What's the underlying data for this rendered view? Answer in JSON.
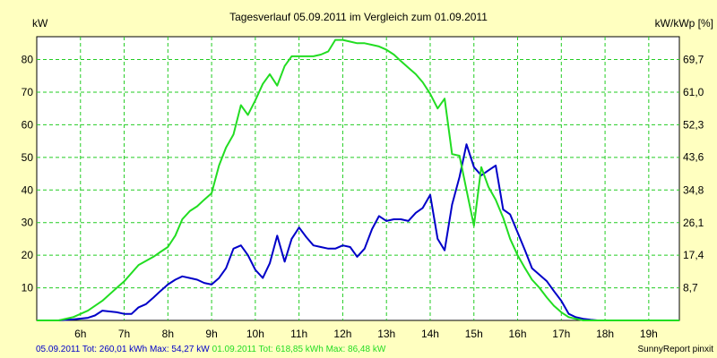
{
  "chart_data": {
    "type": "line",
    "title": "Tagesverlauf 05.09.2011 im Vergleich zum 01.09.2011",
    "ylabel_left": "kW",
    "ylabel_right": "kW/kWp [%]",
    "x_range_hours": [
      5.0,
      19.7
    ],
    "ylim_left": [
      0,
      87
    ],
    "x_ticks": [
      {
        "h": 6,
        "label": "6h"
      },
      {
        "h": 7,
        "label": "7h"
      },
      {
        "h": 8,
        "label": "8h"
      },
      {
        "h": 9,
        "label": "9h"
      },
      {
        "h": 10,
        "label": "10h"
      },
      {
        "h": 11,
        "label": "11h"
      },
      {
        "h": 12,
        "label": "12h"
      },
      {
        "h": 13,
        "label": "13h"
      },
      {
        "h": 14,
        "label": "14h"
      },
      {
        "h": 15,
        "label": "15h"
      },
      {
        "h": 16,
        "label": "16h"
      },
      {
        "h": 17,
        "label": "17h"
      },
      {
        "h": 18,
        "label": "18h"
      },
      {
        "h": 19,
        "label": "19h"
      }
    ],
    "y_ticks_left": [
      {
        "v": 10,
        "label": "10"
      },
      {
        "v": 20,
        "label": "20"
      },
      {
        "v": 30,
        "label": "30"
      },
      {
        "v": 40,
        "label": "40"
      },
      {
        "v": 50,
        "label": "50"
      },
      {
        "v": 60,
        "label": "60"
      },
      {
        "v": 70,
        "label": "70"
      },
      {
        "v": 80,
        "label": "80"
      }
    ],
    "y_ticks_right": [
      {
        "v": 8.7,
        "label": "8,7"
      },
      {
        "v": 17.4,
        "label": "17,4"
      },
      {
        "v": 26.1,
        "label": "26,1"
      },
      {
        "v": 34.8,
        "label": "34,8"
      },
      {
        "v": 43.6,
        "label": "43,6"
      },
      {
        "v": 52.3,
        "label": "52,3"
      },
      {
        "v": 61.0,
        "label": "61,0"
      },
      {
        "v": 69.7,
        "label": "69,7"
      }
    ],
    "grid": true,
    "series": [
      {
        "name": "05.09.2011",
        "color": "#0000c8",
        "x": [
          5.0,
          5.5,
          5.83,
          6.17,
          6.33,
          6.5,
          6.83,
          7.0,
          7.17,
          7.33,
          7.5,
          7.67,
          7.83,
          8.0,
          8.17,
          8.33,
          8.5,
          8.67,
          8.83,
          9.0,
          9.17,
          9.33,
          9.5,
          9.67,
          9.83,
          10.0,
          10.17,
          10.33,
          10.5,
          10.67,
          10.83,
          11.0,
          11.17,
          11.33,
          11.5,
          11.67,
          11.83,
          12.0,
          12.17,
          12.33,
          12.5,
          12.67,
          12.83,
          13.0,
          13.17,
          13.33,
          13.5,
          13.67,
          13.83,
          14.0,
          14.17,
          14.33,
          14.5,
          14.67,
          14.83,
          15.0,
          15.17,
          15.33,
          15.5,
          15.67,
          15.83,
          16.0,
          16.17,
          16.33,
          16.5,
          16.67,
          16.83,
          17.0,
          17.17,
          17.33,
          17.5,
          17.67,
          17.83,
          18.0,
          18.17,
          18.33,
          18.5,
          18.67,
          19.0,
          19.5,
          19.7
        ],
        "values": [
          0.0,
          0.0,
          0.3,
          0.8,
          1.5,
          3.0,
          2.5,
          2.0,
          2.0,
          4.0,
          5.0,
          7.0,
          9.0,
          11.0,
          12.5,
          13.5,
          13.0,
          12.5,
          11.5,
          11.0,
          13.0,
          16.0,
          22.0,
          23.0,
          20.0,
          15.5,
          13.0,
          17.5,
          26.0,
          18.0,
          25.0,
          28.5,
          25.5,
          23.0,
          22.5,
          22.0,
          22.0,
          23.0,
          22.5,
          19.5,
          22.0,
          28.0,
          32.0,
          30.5,
          31.0,
          31.0,
          30.5,
          33.0,
          34.5,
          38.5,
          25.0,
          21.5,
          35.5,
          44.0,
          54.0,
          47.0,
          44.5,
          46.0,
          47.5,
          34.0,
          32.5,
          27.0,
          21.5,
          16.0,
          14.0,
          12.0,
          9.0,
          6.0,
          2.0,
          1.0,
          0.5,
          0.2,
          0.0,
          0.0,
          0.0,
          0.0,
          0.0,
          0.0,
          0.0,
          0.0,
          0.0
        ]
      },
      {
        "name": "01.09.2011",
        "color": "#22dd22",
        "x": [
          5.0,
          5.5,
          5.83,
          6.17,
          6.5,
          6.83,
          7.0,
          7.33,
          7.67,
          7.83,
          8.0,
          8.17,
          8.33,
          8.5,
          8.67,
          8.83,
          9.0,
          9.17,
          9.33,
          9.5,
          9.67,
          9.83,
          10.0,
          10.17,
          10.33,
          10.5,
          10.67,
          10.83,
          11.0,
          11.17,
          11.33,
          11.5,
          11.67,
          11.83,
          12.0,
          12.17,
          12.33,
          12.5,
          12.67,
          12.83,
          13.0,
          13.17,
          13.33,
          13.5,
          13.67,
          13.83,
          14.0,
          14.17,
          14.33,
          14.5,
          14.67,
          14.83,
          15.0,
          15.17,
          15.33,
          15.5,
          15.67,
          15.83,
          16.0,
          16.17,
          16.33,
          16.5,
          16.67,
          16.83,
          17.0,
          17.17,
          17.33,
          17.5,
          17.67,
          17.83,
          18.0,
          18.17,
          18.33,
          18.5,
          18.67,
          18.83,
          19.0,
          19.5,
          19.7
        ],
        "values": [
          0.0,
          0.0,
          1.0,
          3.0,
          6.0,
          10.0,
          12.0,
          17.0,
          19.5,
          21.0,
          22.5,
          26.0,
          31.0,
          33.5,
          35.0,
          37.0,
          39.0,
          47.5,
          53.0,
          57.0,
          66.0,
          63.0,
          67.5,
          72.5,
          75.5,
          72.0,
          78.0,
          81.0,
          81.0,
          81.0,
          81.0,
          81.5,
          82.5,
          86.0,
          86.0,
          85.5,
          85.0,
          85.0,
          84.5,
          84.0,
          83.0,
          81.5,
          79.5,
          77.5,
          75.5,
          73.0,
          69.5,
          65.0,
          68.0,
          51.0,
          50.5,
          40.0,
          29.0,
          47.0,
          41.0,
          37.0,
          31.5,
          25.0,
          20.0,
          16.0,
          12.5,
          10.0,
          7.0,
          4.5,
          2.5,
          1.0,
          0.5,
          0.0,
          0.0,
          0.0,
          0.0,
          0.0,
          0.0,
          0.0,
          0.0,
          0.0,
          0.0,
          0.0,
          0.0
        ]
      }
    ]
  },
  "footer": {
    "blue_text": "05.09.2011 Tot: 260,01 kWh Max: 54,27 kW",
    "green_text": "01.09.2011 Tot: 618,85 kWh Max: 86,48 kW",
    "credit": "SunnyReport pinxit"
  },
  "colors": {
    "background": "#ffffc0",
    "plot_bg": "#ffffff",
    "grid": "#22cc22",
    "blue": "#0000c8",
    "green": "#22dd22"
  }
}
